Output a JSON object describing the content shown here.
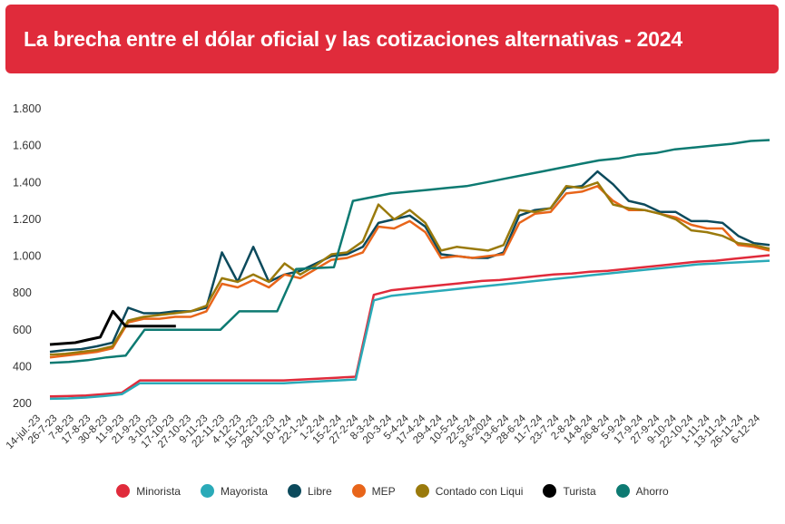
{
  "title": "La brecha entre el dólar oficial y las cotizaciones alternativas - 2024",
  "chart_data": {
    "type": "line",
    "title": "La brecha entre el dólar oficial y las cotizaciones alternativas - 2024",
    "ylim": [
      200,
      1800
    ],
    "yticks": [
      "200",
      "400",
      "600",
      "800",
      "1.000",
      "1.200",
      "1.400",
      "1.600",
      "1.800"
    ],
    "ytick_values": [
      200,
      400,
      600,
      800,
      1000,
      1200,
      1400,
      1600,
      1800
    ],
    "grid": false,
    "legend_position": "bottom",
    "xticks": [
      "14-jul.-23",
      "26-7-23",
      "7-8-23",
      "17-8-23",
      "30-8-23",
      "11-9-23",
      "21-9-23",
      "3-10-23",
      "17-10-23",
      "27-10-23",
      "9-11-23",
      "22-11-23",
      "4-12-23",
      "15-12-23",
      "28-12-23",
      "10-1-24",
      "22-1-24",
      "1-2-24",
      "15-2-24",
      "27-2-24",
      "8-3-24",
      "20-3-24",
      "5-4-24",
      "17-4-24",
      "29-4-24",
      "10-5-24",
      "22-5-24",
      "3-6-2024",
      "13-6-24",
      "28-6-24",
      "11-7-24",
      "23-7-24",
      "2-8-24",
      "14-8-24",
      "26-8-24",
      "5-9-24",
      "17-9-24",
      "27-9-24",
      "9-10-24",
      "22-10-24",
      "1-11-24",
      "13-11-24",
      "26-11-24",
      "6-12-24"
    ],
    "series": [
      {
        "name": "Minorista",
        "color": "#e02b3b",
        "values": [
          238,
          240,
          243,
          250,
          258,
          325,
          325,
          325,
          325,
          325,
          325,
          325,
          325,
          325,
          330,
          335,
          340,
          345,
          790,
          815,
          825,
          835,
          845,
          855,
          865,
          870,
          880,
          890,
          900,
          905,
          915,
          920,
          930,
          940,
          950,
          960,
          970,
          975,
          985,
          995,
          1005
        ]
      },
      {
        "name": "Mayorista",
        "color": "#2aaab8",
        "values": [
          225,
          227,
          232,
          240,
          250,
          310,
          310,
          310,
          310,
          310,
          310,
          310,
          310,
          310,
          315,
          320,
          325,
          330,
          760,
          785,
          795,
          805,
          815,
          825,
          835,
          845,
          855,
          865,
          875,
          885,
          895,
          905,
          915,
          925,
          935,
          945,
          955,
          960,
          965,
          970,
          975
        ]
      },
      {
        "name": "Libre",
        "color": "#0c4a5c",
        "values": [
          480,
          490,
          495,
          510,
          530,
          720,
          690,
          690,
          700,
          700,
          720,
          1020,
          860,
          1050,
          860,
          900,
          920,
          960,
          1000,
          1010,
          1050,
          1180,
          1200,
          1220,
          1160,
          1010,
          1000,
          990,
          990,
          1020,
          1220,
          1250,
          1260,
          1370,
          1380,
          1460,
          1390,
          1300,
          1280,
          1240,
          1240,
          1190,
          1190,
          1180,
          1110,
          1070,
          1060
        ]
      },
      {
        "name": "MEP",
        "color": "#e8651a",
        "values": [
          450,
          460,
          470,
          480,
          500,
          640,
          660,
          660,
          670,
          670,
          700,
          850,
          830,
          870,
          830,
          900,
          880,
          930,
          980,
          990,
          1020,
          1160,
          1150,
          1190,
          1130,
          990,
          1000,
          990,
          1000,
          1010,
          1180,
          1230,
          1240,
          1340,
          1350,
          1380,
          1300,
          1250,
          1250,
          1230,
          1210,
          1170,
          1150,
          1150,
          1060,
          1050,
          1030
        ]
      },
      {
        "name": "Contado con Liqui",
        "color": "#9a7a0c",
        "values": [
          465,
          470,
          480,
          490,
          510,
          650,
          670,
          680,
          690,
          700,
          730,
          880,
          860,
          900,
          860,
          960,
          900,
          950,
          1010,
          1020,
          1080,
          1280,
          1200,
          1250,
          1180,
          1030,
          1050,
          1040,
          1030,
          1060,
          1250,
          1240,
          1260,
          1380,
          1370,
          1400,
          1280,
          1260,
          1250,
          1230,
          1200,
          1140,
          1130,
          1110,
          1070,
          1060,
          1040
        ]
      },
      {
        "name": "Turista",
        "color": "#000000",
        "values": [
          520,
          525,
          530,
          545,
          560,
          700,
          620,
          620,
          620,
          620,
          620
        ]
      },
      {
        "name": "Ahorro",
        "color": "#0d7a72",
        "values": [
          420,
          425,
          435,
          450,
          460,
          600,
          600,
          600,
          600,
          600,
          700,
          700,
          700,
          930,
          935,
          940,
          1300,
          1320,
          1340,
          1350,
          1360,
          1370,
          1380,
          1400,
          1420,
          1440,
          1460,
          1480,
          1500,
          1520,
          1530,
          1550,
          1560,
          1580,
          1590,
          1600,
          1610,
          1625,
          1630
        ]
      }
    ]
  }
}
